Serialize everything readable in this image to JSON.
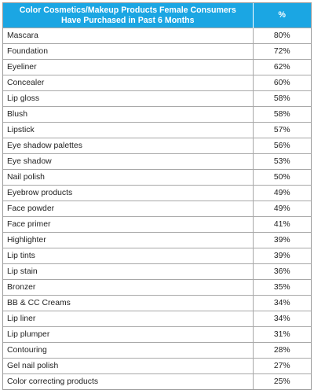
{
  "chart_data": {
    "type": "table",
    "columns": [
      "Color Cosmetics/Makeup Products Female Consumers Have Purchased in Past 6 Months",
      "%"
    ],
    "header_lines": [
      "Color Cosmetics/Makeup Products Female Consumers",
      "Have Purchased in Past 6 Months"
    ],
    "header_color": "#1ba6e3",
    "rows": [
      {
        "product": "Mascara",
        "percent": "80%"
      },
      {
        "product": "Foundation",
        "percent": "72%"
      },
      {
        "product": "Eyeliner",
        "percent": "62%"
      },
      {
        "product": "Concealer",
        "percent": "60%"
      },
      {
        "product": "Lip gloss",
        "percent": "58%"
      },
      {
        "product": "Blush",
        "percent": "58%"
      },
      {
        "product": "Lipstick",
        "percent": "57%"
      },
      {
        "product": "Eye shadow palettes",
        "percent": "56%"
      },
      {
        "product": "Eye shadow",
        "percent": "53%"
      },
      {
        "product": "Nail polish",
        "percent": "50%"
      },
      {
        "product": "Eyebrow products",
        "percent": "49%"
      },
      {
        "product": "Face powder",
        "percent": "49%"
      },
      {
        "product": "Face primer",
        "percent": "41%"
      },
      {
        "product": "Highlighter",
        "percent": "39%"
      },
      {
        "product": "Lip tints",
        "percent": "39%"
      },
      {
        "product": "Lip stain",
        "percent": "36%"
      },
      {
        "product": "Bronzer",
        "percent": "35%"
      },
      {
        "product": "BB & CC Creams",
        "percent": "34%"
      },
      {
        "product": "Lip liner",
        "percent": "34%"
      },
      {
        "product": "Lip plumper",
        "percent": "31%"
      },
      {
        "product": "Contouring",
        "percent": "28%"
      },
      {
        "product": "Gel nail polish",
        "percent": "27%"
      },
      {
        "product": "Color correcting products",
        "percent": "25%"
      }
    ]
  }
}
